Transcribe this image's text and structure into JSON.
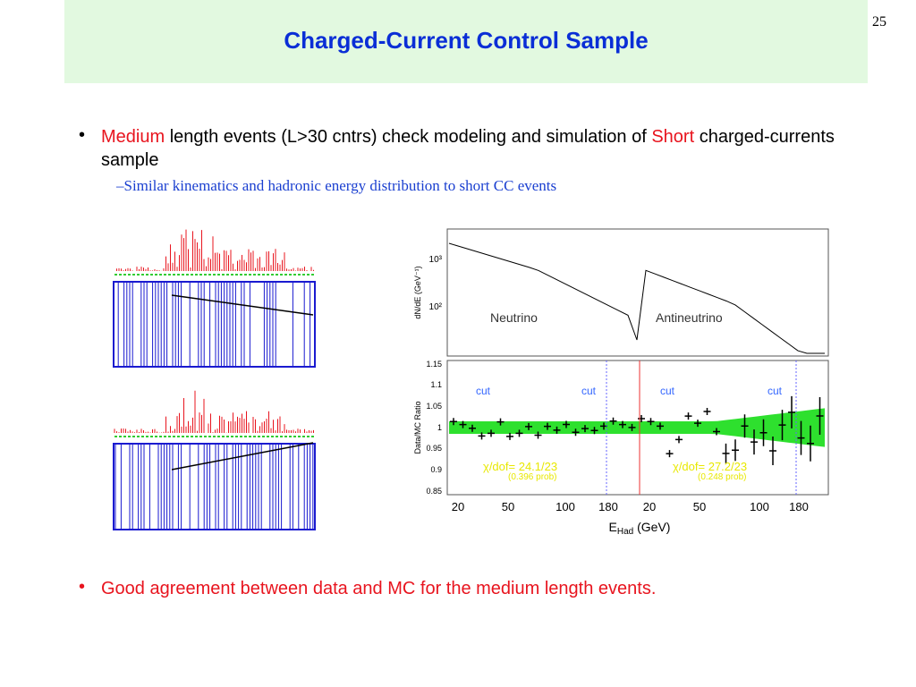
{
  "slide_number": "25",
  "title": "Charged-Current Control Sample",
  "bullets": [
    {
      "segments": [
        "Medium",
        " length events (L>30 cntrs) check modeling and simulation of ",
        "Short",
        " charged-currents sample"
      ]
    },
    {
      "segments": [
        "Good agreement between data and MC for the medium length events."
      ]
    }
  ],
  "sub_bullet": "–Similar kinematics and hadronic energy distribution to short CC events",
  "figure": {
    "top_panel": {
      "y_label": "dN/dE (GeV⁻¹)",
      "y_ticks": [
        "10³",
        "10²"
      ],
      "labels": [
        "Neutrino",
        "Antineutrino"
      ]
    },
    "bottom_panel": {
      "y_label": "Data/MC Ratio",
      "y_ticks": [
        "1.15",
        "1.1",
        "1.05",
        "1",
        "0.95",
        "0.9",
        "0.85"
      ],
      "cut_labels": [
        "cut",
        "cut",
        "cut",
        "cut"
      ],
      "chi2": [
        "χ/dof= 24.1/23",
        "χ/dof= 27.2/23"
      ],
      "prob": [
        "(0.396 prob)",
        "(0.248 prob)"
      ]
    },
    "x_ticks": [
      "20",
      "50",
      "100",
      "180",
      "20",
      "50",
      "100",
      "180"
    ],
    "x_label": {
      "main": "E",
      "sub": "Had",
      "unit": " (GeV)"
    }
  }
}
